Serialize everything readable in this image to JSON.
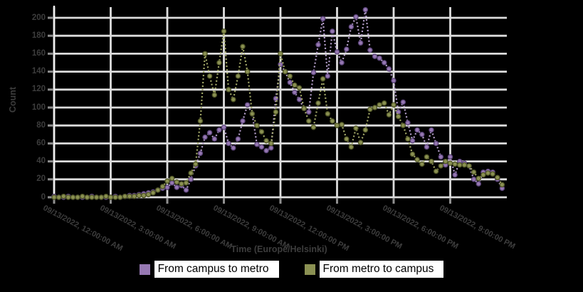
{
  "window": {
    "background": "#000000"
  },
  "chart": {
    "y_axis": {
      "title": "Count",
      "ticks": [
        0,
        20,
        40,
        60,
        80,
        100,
        120,
        140,
        160,
        180,
        200
      ]
    },
    "x_axis": {
      "title": "Time (Europe/Helsinki)",
      "tick_labels": [
        "09/13/2022, 12:00:00 AM",
        "09/13/2022, 3:00:00 AM",
        "09/13/2022, 6:00:00 AM",
        "09/13/2022, 9:00:00 AM",
        "09/13/2022, 12:00:00 PM",
        "09/13/2022, 3:00:00 PM",
        "09/13/2022, 6:00:00 PM",
        "09/13/2022, 9:00:00 PM"
      ]
    },
    "legend": {
      "items": [
        {
          "label": "From campus to metro",
          "color": "#9678b2"
        },
        {
          "label": "From metro to campus",
          "color": "#8b9153"
        }
      ]
    }
  },
  "chart_data": {
    "type": "line",
    "title": "",
    "xlabel": "Time (Europe/Helsinki)",
    "ylabel": "Count",
    "x_start": "12:00:00 AM",
    "x_interval_minutes": 15,
    "n_points": 96,
    "x_tick_labels": [
      "12:00:00 AM",
      "3:00:00 AM",
      "6:00:00 AM",
      "9:00:00 AM",
      "12:00:00 PM",
      "3:00:00 PM",
      "6:00:00 PM",
      "9:00:00 PM"
    ],
    "ylim": [
      0,
      210
    ],
    "grid": true,
    "legend_position": "bottom",
    "marker_style": "dotted-line-with-circle-markers",
    "colors": {
      "grid": "#dcdcdc",
      "axis_line": "#efefef",
      "tick_mark": "#8f8f8f",
      "axis_text": "#3d3d3d"
    },
    "series": [
      {
        "name": "From campus to metro",
        "color": "#9678b2",
        "edge_color": "#5a4478",
        "line_color": "#b6a0cc",
        "values": [
          1,
          0,
          0,
          1,
          0,
          0,
          0,
          0,
          1,
          0,
          0,
          0,
          0,
          1,
          0,
          1,
          2,
          2,
          3,
          4,
          5,
          6,
          8,
          10,
          11,
          16,
          11,
          13,
          8,
          20,
          35,
          49,
          67,
          72,
          65,
          75,
          78,
          60,
          55,
          65,
          85,
          103,
          93,
          59,
          56,
          52,
          55,
          110,
          148,
          140,
          128,
          117,
          109,
          99,
          95,
          139,
          170,
          199,
          135,
          185,
          162,
          150,
          165,
          190,
          201,
          172,
          209,
          164,
          157,
          155,
          150,
          143,
          130,
          95,
          106,
          83,
          63,
          75,
          70,
          56,
          75,
          60,
          45,
          36,
          45,
          25,
          40,
          38,
          35,
          20,
          15,
          28,
          29,
          28,
          20,
          10
        ]
      },
      {
        "name": "From metro to campus",
        "color": "#8b9153",
        "edge_color": "#4f5526",
        "line_color": "#a2a868",
        "values": [
          0,
          0,
          1,
          0,
          0,
          0,
          1,
          0,
          0,
          0,
          0,
          1,
          0,
          0,
          0,
          1,
          1,
          1,
          2,
          2,
          3,
          5,
          8,
          12,
          18,
          21,
          17,
          15,
          16,
          27,
          37,
          85,
          160,
          135,
          114,
          150,
          185,
          120,
          109,
          135,
          168,
          140,
          93,
          80,
          73,
          63,
          60,
          95,
          160,
          140,
          135,
          125,
          122,
          99,
          85,
          78,
          105,
          132,
          93,
          85,
          80,
          81,
          65,
          56,
          77,
          61,
          75,
          98,
          100,
          103,
          105,
          92,
          103,
          90,
          80,
          65,
          48,
          42,
          37,
          45,
          40,
          29,
          35,
          40,
          38,
          37,
          36,
          36,
          35,
          28,
          21,
          25,
          27,
          26,
          22,
          14
        ]
      }
    ]
  }
}
